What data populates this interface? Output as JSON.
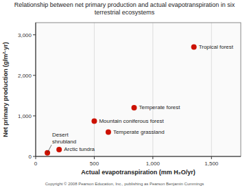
{
  "chart_data": {
    "type": "scatter",
    "title": "Relationship between net primary production and actual evapotranspiration in six terrestrial ecosystems",
    "x_label": "Actual evapotranspiration (mm H₂O/yr)",
    "y_label": "Net primary production (g/m²·yr)",
    "caption": "Copyright © 2008 Pearson Education, Inc., publishing as Pearson Benjamin Cummings",
    "x": [
      100,
      200,
      500,
      620,
      840,
      1350
    ],
    "values": [
      90,
      170,
      870,
      600,
      1200,
      2700
    ],
    "color": "#cc1100",
    "annotations": [
      {
        "text": "Desert\nshrubland",
        "x": 100,
        "y": 90
      },
      {
        "text": "Arctic tundra",
        "x": 200,
        "y": 170
      },
      {
        "text": "Mountain coniferous forest",
        "x": 500,
        "y": 870
      },
      {
        "text": "Temperate grassland",
        "x": 620,
        "y": 600
      },
      {
        "text": "Temperate forest",
        "x": 840,
        "y": 1200
      },
      {
        "text": "Tropical forest",
        "x": 1350,
        "y": 2700
      }
    ],
    "xlim": [
      0,
      1750
    ],
    "ylim": [
      0,
      3300
    ],
    "xticks": [
      0,
      500,
      {
        "value": 1000,
        "label": "1,000"
      },
      {
        "value": 1500,
        "label": "1,500"
      }
    ],
    "yticks": [
      0,
      {
        "value": 1000,
        "label": "1,000"
      },
      {
        "value": 2000,
        "label": "2,000"
      },
      {
        "value": 3000,
        "label": "3,000"
      }
    ],
    "grid": "x"
  }
}
